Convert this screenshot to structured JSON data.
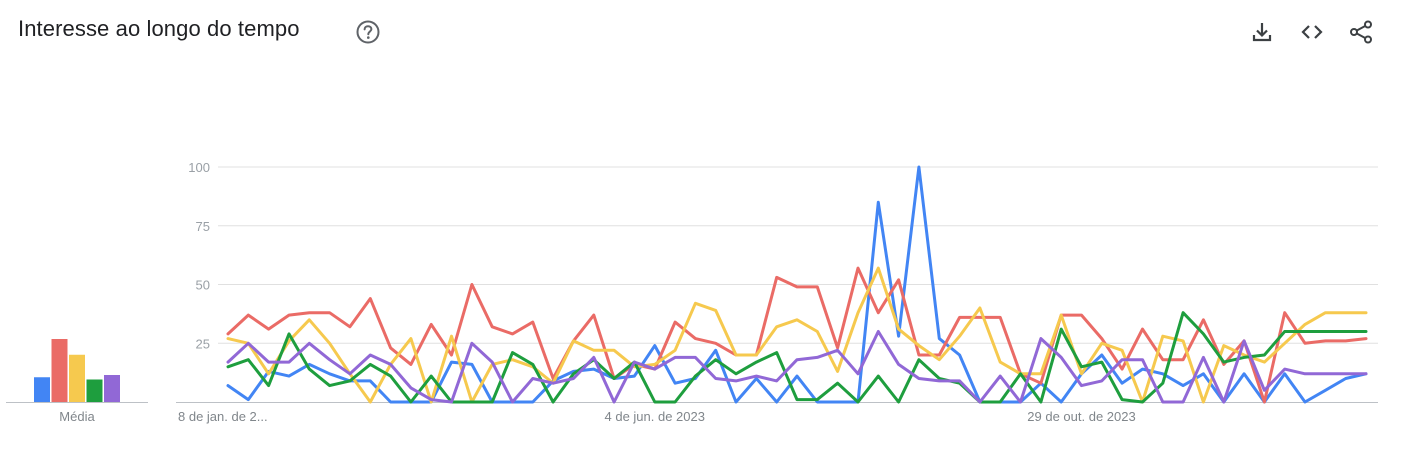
{
  "header": {
    "title": "Interesse ao longo do tempo",
    "help_icon": "help-circle-icon",
    "actions": [
      "download-icon",
      "embed-code-icon",
      "share-icon"
    ]
  },
  "average_panel": {
    "label": "Média"
  },
  "chart_data": {
    "type": "line",
    "title": "",
    "xlabel": "",
    "ylabel": "",
    "ylim": [
      0,
      100
    ],
    "yticks": [
      25,
      50,
      75,
      100
    ],
    "x_tick_labels": [
      "8 de jan. de 2...",
      "4 de jun. de 2023",
      "29 de out. de 2023"
    ],
    "x_tick_positions": [
      0,
      21,
      42
    ],
    "grid": true,
    "legend": "none",
    "series": [
      {
        "color": "#4285f4",
        "values": [
          7,
          1,
          13,
          11,
          16,
          12,
          9,
          9,
          0,
          0,
          0,
          17,
          16,
          0,
          0,
          0,
          9,
          13,
          14,
          10,
          11,
          24,
          8,
          10,
          22,
          0,
          10,
          0,
          11,
          0,
          0,
          0,
          85,
          28,
          100,
          27,
          20,
          0,
          0,
          0,
          8,
          0,
          12,
          20,
          8,
          14,
          12,
          7,
          12,
          0,
          12,
          0,
          12,
          0,
          5,
          10,
          12
        ]
      },
      {
        "color": "#ea6b66",
        "values": [
          29,
          37,
          31,
          37,
          38,
          38,
          32,
          44,
          23,
          16,
          33,
          20,
          50,
          32,
          29,
          34,
          10,
          26,
          37,
          10,
          16,
          14,
          34,
          27,
          25,
          20,
          20,
          53,
          49,
          49,
          23,
          57,
          38,
          52,
          20,
          20,
          36,
          36,
          36,
          12,
          8,
          37,
          37,
          27,
          14,
          31,
          18,
          18,
          35,
          16,
          26,
          0,
          38,
          25,
          26,
          26,
          27
        ]
      },
      {
        "color": "#f6c94e",
        "values": [
          27,
          25,
          12,
          26,
          35,
          25,
          12,
          0,
          16,
          27,
          0,
          28,
          0,
          16,
          18,
          15,
          8,
          26,
          22,
          22,
          15,
          16,
          22,
          42,
          39,
          20,
          20,
          32,
          35,
          30,
          13,
          38,
          57,
          31,
          24,
          18,
          28,
          40,
          17,
          12,
          12,
          37,
          12,
          25,
          22,
          0,
          28,
          26,
          0,
          24,
          20,
          17,
          25,
          33,
          38,
          38,
          38
        ]
      },
      {
        "color": "#1e9e3e",
        "values": [
          15,
          18,
          7,
          29,
          14,
          7,
          9,
          16,
          11,
          0,
          11,
          0,
          0,
          0,
          21,
          16,
          0,
          12,
          18,
          10,
          17,
          0,
          0,
          11,
          18,
          12,
          17,
          21,
          1,
          1,
          8,
          0,
          11,
          0,
          18,
          10,
          8,
          0,
          0,
          12,
          0,
          31,
          15,
          17,
          1,
          0,
          8,
          38,
          29,
          17,
          19,
          20,
          30,
          30,
          30,
          30,
          30
        ]
      },
      {
        "color": "#9168d6",
        "values": [
          17,
          25,
          17,
          17,
          25,
          18,
          12,
          20,
          16,
          6,
          1,
          0,
          25,
          17,
          0,
          10,
          8,
          10,
          19,
          0,
          17,
          14,
          19,
          19,
          10,
          9,
          11,
          9,
          18,
          19,
          22,
          12,
          30,
          16,
          10,
          9,
          9,
          0,
          11,
          0,
          27,
          19,
          7,
          9,
          18,
          18,
          0,
          0,
          19,
          0,
          26,
          5,
          14,
          12,
          12,
          12,
          12
        ]
      }
    ],
    "averages": [
      11,
      28,
      21,
      10,
      12
    ]
  }
}
